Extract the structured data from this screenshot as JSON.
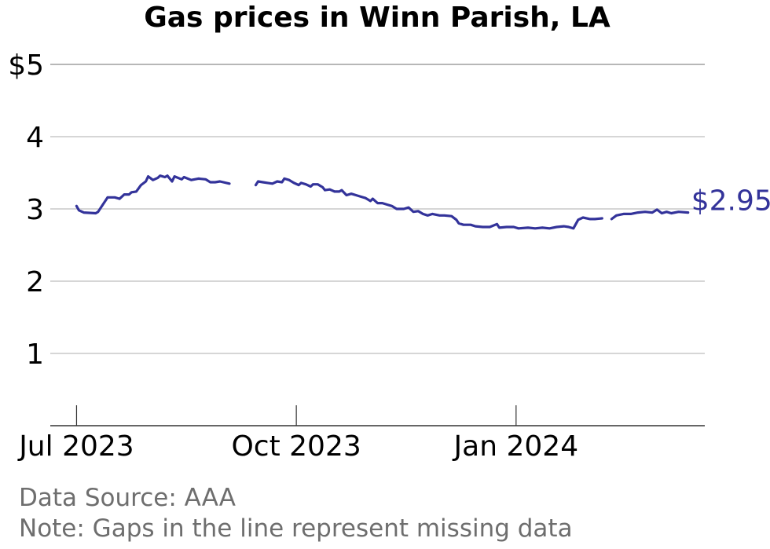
{
  "chart_data": {
    "type": "line",
    "title": "Gas prices in Winn Parish, LA",
    "xlabel": "",
    "ylabel": "",
    "ylim": [
      0,
      5
    ],
    "yticks": [
      {
        "value": 1,
        "label": "1"
      },
      {
        "value": 2,
        "label": "2"
      },
      {
        "value": 3,
        "label": "3"
      },
      {
        "value": 4,
        "label": "4"
      },
      {
        "value": 5,
        "label": "$5"
      }
    ],
    "xlim": [
      "2023-06-20",
      "2024-03-20"
    ],
    "xticks": [
      {
        "value": "2023-07-01",
        "label": "Jul 2023"
      },
      {
        "value": "2023-10-01",
        "label": "Oct 2023"
      },
      {
        "value": "2024-01-01",
        "label": "Jan 2024"
      }
    ],
    "grid": "horizontal",
    "line_color": "#33339a",
    "end_label": "$2.95",
    "note": "Gaps in the line represent missing data",
    "series": [
      {
        "segments": [
          [
            [
              "2023-07-01",
              3.04
            ],
            [
              "2023-07-02",
              2.98
            ],
            [
              "2023-07-04",
              2.95
            ],
            [
              "2023-07-09",
              2.94
            ],
            [
              "2023-07-10",
              2.96
            ],
            [
              "2023-07-12",
              3.06
            ],
            [
              "2023-07-14",
              3.16
            ],
            [
              "2023-07-17",
              3.16
            ],
            [
              "2023-07-19",
              3.14
            ],
            [
              "2023-07-21",
              3.2
            ],
            [
              "2023-07-23",
              3.2
            ],
            [
              "2023-07-24",
              3.23
            ],
            [
              "2023-07-26",
              3.24
            ],
            [
              "2023-07-28",
              3.33
            ],
            [
              "2023-07-30",
              3.38
            ],
            [
              "2023-07-31",
              3.45
            ],
            [
              "2023-08-02",
              3.4
            ],
            [
              "2023-08-04",
              3.43
            ],
            [
              "2023-08-05",
              3.46
            ],
            [
              "2023-08-07",
              3.44
            ],
            [
              "2023-08-08",
              3.46
            ],
            [
              "2023-08-10",
              3.38
            ],
            [
              "2023-08-11",
              3.45
            ],
            [
              "2023-08-14",
              3.41
            ],
            [
              "2023-08-15",
              3.44
            ],
            [
              "2023-08-18",
              3.4
            ],
            [
              "2023-08-21",
              3.42
            ],
            [
              "2023-08-24",
              3.41
            ],
            [
              "2023-08-26",
              3.37
            ],
            [
              "2023-08-28",
              3.37
            ],
            [
              "2023-08-30",
              3.38
            ],
            [
              "2023-09-03",
              3.35
            ]
          ],
          [
            [
              "2023-09-14",
              3.33
            ],
            [
              "2023-09-15",
              3.38
            ],
            [
              "2023-09-17",
              3.37
            ],
            [
              "2023-09-19",
              3.36
            ],
            [
              "2023-09-21",
              3.35
            ],
            [
              "2023-09-23",
              3.38
            ],
            [
              "2023-09-25",
              3.37
            ],
            [
              "2023-09-26",
              3.42
            ],
            [
              "2023-09-28",
              3.4
            ],
            [
              "2023-09-30",
              3.36
            ],
            [
              "2023-10-02",
              3.33
            ],
            [
              "2023-10-03",
              3.36
            ],
            [
              "2023-10-05",
              3.34
            ],
            [
              "2023-10-07",
              3.31
            ],
            [
              "2023-10-08",
              3.34
            ],
            [
              "2023-10-10",
              3.34
            ],
            [
              "2023-10-12",
              3.3
            ],
            [
              "2023-10-13",
              3.26
            ],
            [
              "2023-10-15",
              3.27
            ],
            [
              "2023-10-17",
              3.24
            ],
            [
              "2023-10-19",
              3.24
            ],
            [
              "2023-10-20",
              3.26
            ],
            [
              "2023-10-22",
              3.19
            ],
            [
              "2023-10-24",
              3.21
            ],
            [
              "2023-10-26",
              3.19
            ],
            [
              "2023-10-28",
              3.17
            ],
            [
              "2023-10-30",
              3.15
            ],
            [
              "2023-11-01",
              3.11
            ],
            [
              "2023-11-02",
              3.14
            ],
            [
              "2023-11-04",
              3.08
            ],
            [
              "2023-11-06",
              3.08
            ],
            [
              "2023-11-08",
              3.06
            ],
            [
              "2023-11-10",
              3.04
            ],
            [
              "2023-11-12",
              3.0
            ],
            [
              "2023-11-15",
              3.0
            ],
            [
              "2023-11-17",
              3.02
            ],
            [
              "2023-11-19",
              2.96
            ],
            [
              "2023-11-21",
              2.97
            ],
            [
              "2023-11-23",
              2.93
            ],
            [
              "2023-11-25",
              2.91
            ],
            [
              "2023-11-27",
              2.93
            ],
            [
              "2023-11-30",
              2.91
            ],
            [
              "2023-12-02",
              2.91
            ],
            [
              "2023-12-05",
              2.9
            ],
            [
              "2023-12-07",
              2.85
            ],
            [
              "2023-12-08",
              2.8
            ],
            [
              "2023-12-10",
              2.78
            ],
            [
              "2023-12-13",
              2.78
            ],
            [
              "2023-12-15",
              2.76
            ],
            [
              "2023-12-18",
              2.75
            ],
            [
              "2023-12-21",
              2.75
            ],
            [
              "2023-12-24",
              2.79
            ],
            [
              "2023-12-25",
              2.74
            ],
            [
              "2023-12-28",
              2.75
            ],
            [
              "2023-12-31",
              2.75
            ],
            [
              "2024-01-02",
              2.73
            ],
            [
              "2024-01-06",
              2.74
            ],
            [
              "2024-01-09",
              2.73
            ],
            [
              "2024-01-12",
              2.74
            ],
            [
              "2024-01-15",
              2.73
            ],
            [
              "2024-01-18",
              2.75
            ],
            [
              "2024-01-21",
              2.76
            ],
            [
              "2024-01-23",
              2.75
            ],
            [
              "2024-01-25",
              2.73
            ],
            [
              "2024-01-27",
              2.85
            ],
            [
              "2024-01-29",
              2.88
            ],
            [
              "2024-02-01",
              2.86
            ],
            [
              "2024-02-03",
              2.86
            ],
            [
              "2024-02-06",
              2.87
            ]
          ],
          [
            [
              "2024-02-10",
              2.86
            ],
            [
              "2024-02-12",
              2.91
            ],
            [
              "2024-02-15",
              2.93
            ],
            [
              "2024-02-18",
              2.93
            ],
            [
              "2024-02-21",
              2.95
            ],
            [
              "2024-02-24",
              2.96
            ],
            [
              "2024-02-27",
              2.95
            ],
            [
              "2024-02-29",
              2.99
            ],
            [
              "2024-03-02",
              2.94
            ],
            [
              "2024-03-04",
              2.96
            ],
            [
              "2024-03-06",
              2.94
            ],
            [
              "2024-03-09",
              2.96
            ],
            [
              "2024-03-13",
              2.95
            ]
          ]
        ]
      }
    ]
  },
  "footer": {
    "source": "Data Source: AAA",
    "note": "Note: Gaps in the line represent missing data"
  }
}
